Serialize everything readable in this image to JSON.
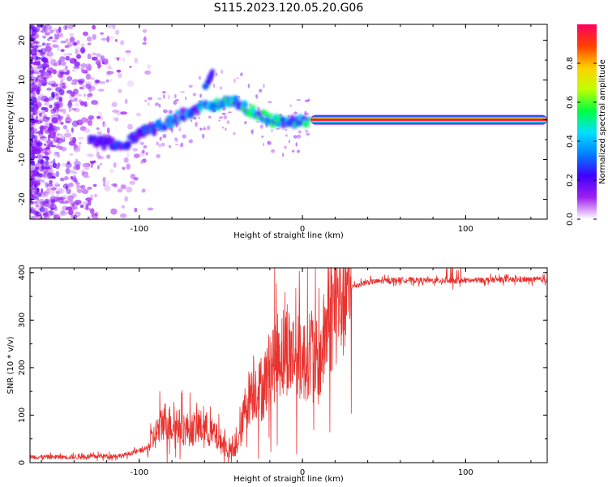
{
  "title": "S115.2023.120.05.20.G06",
  "chart_data": [
    {
      "type": "heatmap",
      "xlabel": "Height of straight line (km)",
      "ylabel": "Frequency (Hz)",
      "xlim": [
        -167,
        150
      ],
      "ylim": [
        -25,
        24
      ],
      "xticks": [
        -100,
        0,
        100
      ],
      "yticks": [
        -20,
        -10,
        0,
        10,
        20
      ],
      "colorbar": {
        "label": "Normalized spectral amplitude",
        "range": [
          0,
          1
        ],
        "ticks": [
          0.0,
          0.2,
          0.4,
          0.6,
          0.8
        ],
        "colormap": [
          "#ffffff",
          "#a020f0",
          "#4000ff",
          "#0080ff",
          "#00e0ff",
          "#00ff40",
          "#c0ff00",
          "#ffd000",
          "#ff4000",
          "#ff0060"
        ]
      },
      "ridge": {
        "x": [
          -130,
          -120,
          -110,
          -100,
          -90,
          -80,
          -70,
          -60,
          -50,
          -45,
          -40,
          -30,
          -20,
          -10,
          0,
          5,
          50,
          100,
          150
        ],
        "y": [
          -5,
          -6,
          -7,
          -3,
          -2,
          0,
          2,
          3,
          4,
          5,
          4,
          2,
          0,
          -1,
          0,
          0,
          0,
          0,
          0
        ]
      },
      "branch": {
        "x": [
          -60,
          -55
        ],
        "y": [
          8,
          12
        ]
      },
      "steady_tone": {
        "x_from": 5,
        "x_to": 150,
        "frequency": 0,
        "amplitude": 1.0
      }
    },
    {
      "type": "line",
      "xlabel": "Height of straight line (km)",
      "ylabel": "SNR (10 * v/v)",
      "xlim": [
        -167,
        150
      ],
      "ylim": [
        0,
        410
      ],
      "xticks": [
        -100,
        0,
        100
      ],
      "yticks": [
        0,
        100,
        200,
        300,
        400
      ],
      "series": [
        {
          "color": "#e8322e",
          "x": [
            -167,
            -140,
            -110,
            -95,
            -90,
            -85,
            -80,
            -70,
            -60,
            -55,
            -50,
            -45,
            -42,
            -38,
            -35,
            -30,
            -25,
            -20,
            -15,
            -10,
            -5,
            0,
            5,
            10,
            15,
            20,
            25,
            30,
            40,
            60,
            80,
            100,
            120,
            150
          ],
          "y": [
            12,
            12,
            15,
            30,
            60,
            90,
            80,
            70,
            75,
            60,
            45,
            25,
            20,
            60,
            120,
            160,
            150,
            200,
            230,
            240,
            230,
            210,
            240,
            200,
            290,
            330,
            355,
            370,
            380,
            385,
            383,
            383,
            385,
            385
          ]
        }
      ]
    }
  ]
}
